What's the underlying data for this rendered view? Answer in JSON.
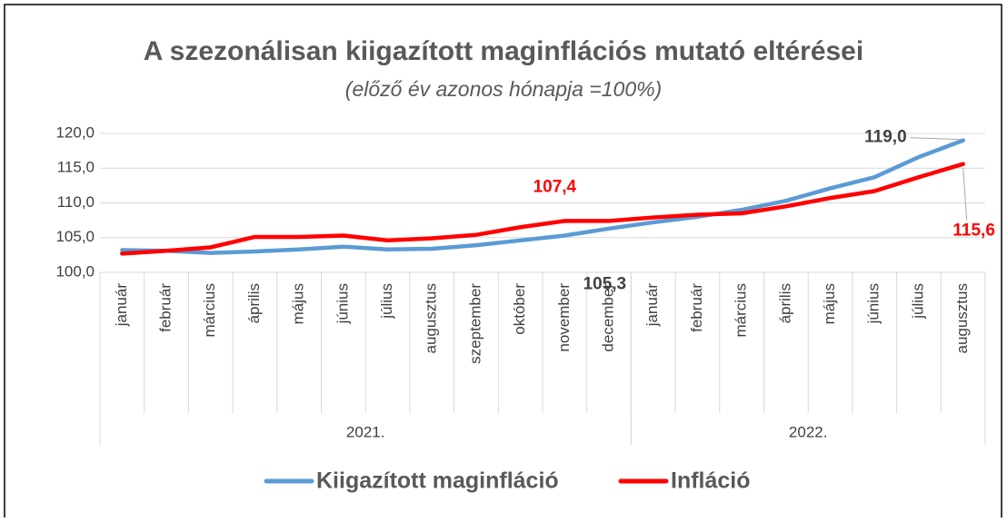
{
  "chart_data": {
    "type": "line",
    "title": "A szezonálisan kiigazított maginflációs mutató eltérései",
    "subtitle": "(előző év azonos hónapja =100%)",
    "category_groups": [
      {
        "name": "2021.",
        "categories": [
          "január",
          "február",
          "március",
          "április",
          "május",
          "június",
          "július",
          "augusztus",
          "szeptember",
          "október",
          "november",
          "december"
        ]
      },
      {
        "name": "2022.",
        "categories": [
          "január",
          "február",
          "március",
          "április",
          "május",
          "június",
          "július",
          "augusztus"
        ]
      }
    ],
    "series": [
      {
        "name": "Kiigazított maginfláció",
        "color": "#5b9bd5",
        "values": [
          103.2,
          103.1,
          102.8,
          103.0,
          103.3,
          103.7,
          103.3,
          103.4,
          103.9,
          104.6,
          105.3,
          106.3,
          107.2,
          108.0,
          109.0,
          110.3,
          112.1,
          113.7,
          116.6,
          119.0
        ],
        "value_labels": [
          null,
          null,
          null,
          null,
          null,
          null,
          null,
          null,
          null,
          null,
          "105,3",
          null,
          null,
          null,
          null,
          null,
          null,
          null,
          null,
          "119,0"
        ],
        "label_color": "#404040"
      },
      {
        "name": "Infláció",
        "color": "#ff0000",
        "values": [
          102.7,
          103.1,
          103.6,
          105.1,
          105.1,
          105.3,
          104.6,
          104.9,
          105.4,
          106.5,
          107.4,
          107.4,
          107.9,
          108.3,
          108.5,
          109.5,
          110.7,
          111.7,
          113.7,
          115.6
        ],
        "value_labels": [
          null,
          null,
          null,
          null,
          null,
          null,
          null,
          null,
          null,
          null,
          "107,4",
          null,
          null,
          null,
          null,
          null,
          null,
          null,
          null,
          "115,6"
        ],
        "label_color": "#ff0000"
      }
    ],
    "ylim": [
      100,
      120
    ],
    "yticks": [
      {
        "value": 100,
        "label": "100,0"
      },
      {
        "value": 105,
        "label": "105,0"
      },
      {
        "value": 110,
        "label": "110,0"
      },
      {
        "value": 115,
        "label": "115,0"
      },
      {
        "value": 120,
        "label": "120,0"
      }
    ],
    "grid": true,
    "legend": "bottom"
  }
}
